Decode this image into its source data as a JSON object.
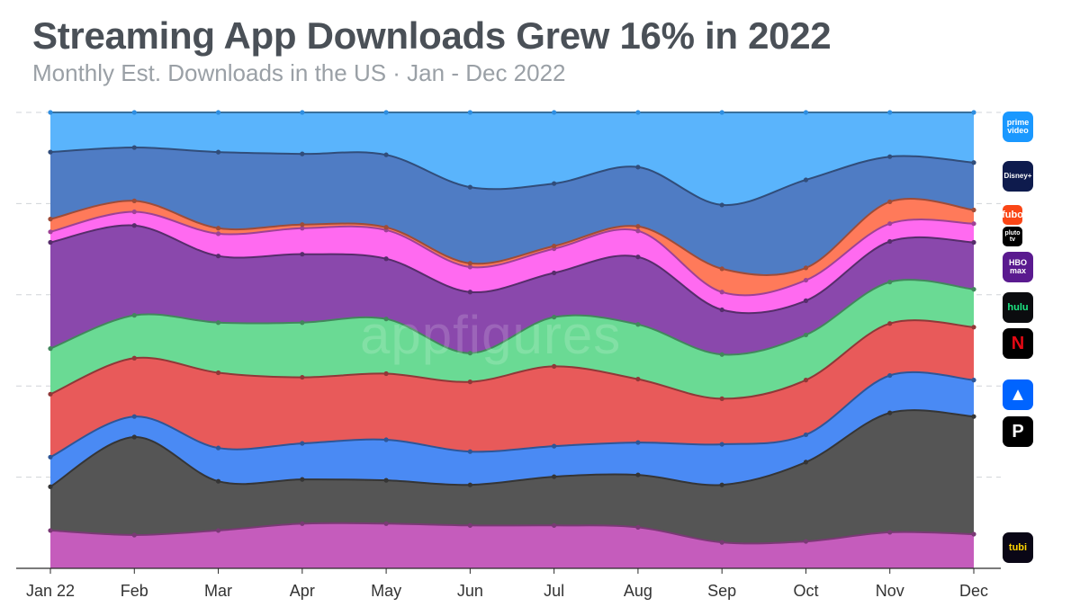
{
  "header": {
    "title": "Streaming App Downloads Grew 16% in 2022",
    "subtitle": "Monthly Est. Downloads in the US · Jan - Dec 2022"
  },
  "watermark": "appfigures",
  "chart_data": {
    "type": "area",
    "stacked": true,
    "curve": "smooth",
    "x": [
      "Jan 22",
      "Feb",
      "Mar",
      "Apr",
      "May",
      "Jun",
      "Jul",
      "Aug",
      "Sep",
      "Oct",
      "Nov",
      "Dec"
    ],
    "ylim": [
      0,
      100
    ],
    "grid": true,
    "legend_position": "right",
    "note": "Values are estimated cumulative stack levels (top edge of each layer, scale 0-100 of chart height); layers listed bottom to top.",
    "series": [
      {
        "name": "Tubi",
        "color": "#c55cbc",
        "values": [
          8.3,
          7.3,
          8.3,
          9.8,
          9.8,
          9.4,
          9.4,
          9.0,
          5.7,
          5.9,
          7.9,
          7.5
        ]
      },
      {
        "name": "Peacock",
        "color": "#555555",
        "values": [
          17.9,
          28.8,
          19.1,
          19.5,
          19.3,
          18.3,
          20.1,
          20.5,
          18.3,
          23.3,
          34.1,
          33.3
        ]
      },
      {
        "name": "Paramount+",
        "color": "#4a8af4",
        "values": [
          24.4,
          33.3,
          26.4,
          27.4,
          28.2,
          25.6,
          26.8,
          27.6,
          27.2,
          29.3,
          42.3,
          41.3
        ]
      },
      {
        "name": "Netflix",
        "color": "#e85a5a",
        "values": [
          38.2,
          46.1,
          42.9,
          41.9,
          42.7,
          40.9,
          44.3,
          41.5,
          37.2,
          41.3,
          53.7,
          52.9
        ]
      },
      {
        "name": "Hulu",
        "color": "#6ada94",
        "values": [
          48.2,
          55.5,
          53.9,
          53.9,
          54.7,
          47.2,
          55.1,
          53.5,
          46.9,
          51.2,
          62.8,
          61.2
        ]
      },
      {
        "name": "HBO Max",
        "color": "#8a48ac",
        "values": [
          71.5,
          75.2,
          68.5,
          68.9,
          67.9,
          60.6,
          64.8,
          68.3,
          56.7,
          58.7,
          71.7,
          71.5
        ]
      },
      {
        "name": "Pluto TV",
        "color": "#ff6af0",
        "values": [
          73.8,
          78.2,
          73.4,
          74.6,
          74.2,
          66.1,
          70.1,
          74.0,
          60.6,
          63.2,
          75.6,
          75.6
        ]
      },
      {
        "name": "fuboTV",
        "color": "#ff7a5a",
        "values": [
          76.6,
          80.6,
          74.6,
          75.4,
          74.8,
          66.9,
          70.7,
          75.0,
          65.7,
          65.9,
          80.4,
          78.6
        ]
      },
      {
        "name": "Disney+",
        "color": "#4f7cc4",
        "values": [
          91.3,
          92.3,
          91.3,
          90.9,
          90.7,
          83.6,
          84.4,
          88.0,
          79.7,
          85.2,
          90.3,
          89.0
        ]
      },
      {
        "name": "Prime Video",
        "color": "#5ab4fc",
        "values": [
          100,
          100,
          100,
          100,
          100,
          100,
          100,
          100,
          100,
          100,
          100,
          100
        ]
      }
    ]
  },
  "legend_icons": [
    {
      "name": "prime-video",
      "series": "Prime Video",
      "lines": [
        "prime",
        "video"
      ],
      "bg": "#1a98ff",
      "fg": "#ffffff"
    },
    {
      "name": "disney-plus",
      "series": "Disney+",
      "lines": [
        "Disney+"
      ],
      "bg": "#0e1b4d",
      "fg": "#ffffff"
    },
    {
      "name": "fubo",
      "series": "fuboTV",
      "lines": [
        "fubo"
      ],
      "bg": "#fa4616",
      "fg": "#ffffff"
    },
    {
      "name": "pluto-tv",
      "series": "Pluto TV",
      "lines": [
        "pluto",
        "tv"
      ],
      "bg": "#000000",
      "fg": "#ffffff"
    },
    {
      "name": "hbo-max",
      "series": "HBO Max",
      "lines": [
        "HBO",
        "max"
      ],
      "bg": "#5a1a8f",
      "fg": "#ffffff"
    },
    {
      "name": "hulu",
      "series": "Hulu",
      "lines": [
        "hulu"
      ],
      "bg": "#0b0c0f",
      "fg": "#1ce783"
    },
    {
      "name": "netflix",
      "series": "Netflix",
      "lines": [
        "N"
      ],
      "bg": "#000000",
      "fg": "#e50914"
    },
    {
      "name": "paramount-plus",
      "series": "Paramount+",
      "lines": [
        "▲"
      ],
      "bg": "#0064ff",
      "fg": "#ffffff"
    },
    {
      "name": "peacock",
      "series": "Peacock",
      "lines": [
        "P"
      ],
      "bg": "#000000",
      "fg": "#ffffff"
    },
    {
      "name": "tubi",
      "series": "Tubi",
      "lines": [
        "tubi"
      ],
      "bg": "#0a0716",
      "fg": "#ffd400"
    }
  ],
  "colors": {
    "title": "#4a5057",
    "subtitle": "#9aa0a6",
    "grid": "#d0d4d8",
    "axis": "#2a2a2a"
  }
}
